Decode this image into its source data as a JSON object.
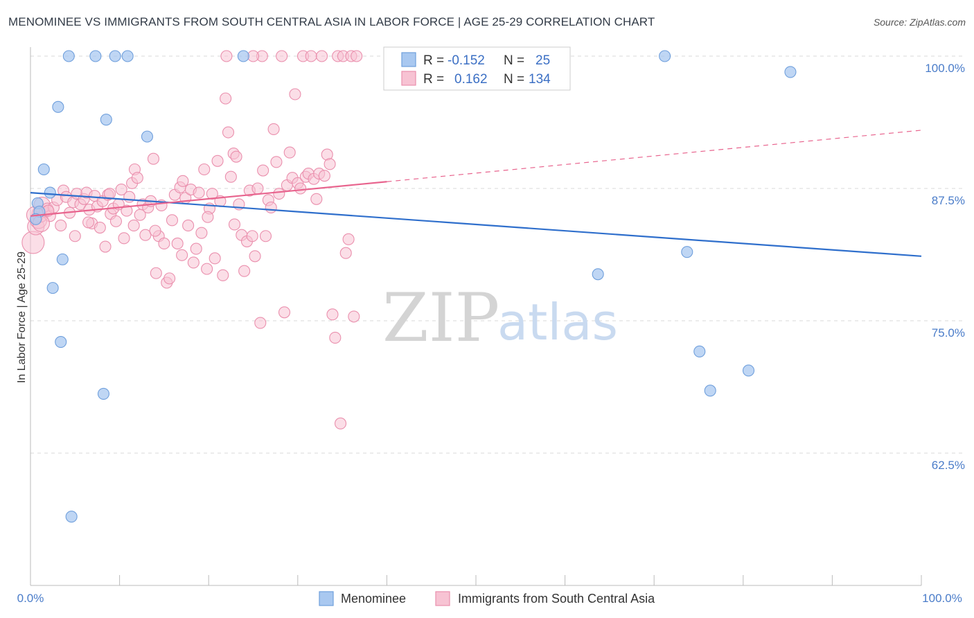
{
  "title": "MENOMINEE VS IMMIGRANTS FROM SOUTH CENTRAL ASIA IN LABOR FORCE | AGE 25-29 CORRELATION CHART",
  "source": "Source: ZipAtlas.com",
  "watermark": {
    "part1": "ZIP",
    "part2": "atlas"
  },
  "colors": {
    "blue_fill": "#a9c8f0",
    "blue_stroke": "#6f9fdc",
    "blue_line": "#2f6fcc",
    "pink_fill": "#f7c3d3",
    "pink_stroke": "#ea8fad",
    "pink_line": "#e8648e",
    "axis_text": "#4a7cc9",
    "grid": "#d8d8d8"
  },
  "legend_box": {
    "rows": [
      {
        "r_label": "R =",
        "r_value": "-0.152",
        "n_label": "N =",
        "n_value": "25"
      },
      {
        "r_label": "R =",
        "r_value": "0.162",
        "n_label": "N =",
        "n_value": "134"
      }
    ]
  },
  "chart_data": {
    "type": "scatter",
    "xlabel": "",
    "ylabel": "In Labor Force | Age 25-29",
    "xlim": [
      0,
      100
    ],
    "ylim": [
      50,
      102
    ],
    "x_tick_labels": [
      "0.0%",
      "100.0%"
    ],
    "y_ticks": [
      62.5,
      75.0,
      87.5,
      100.0
    ],
    "y_tick_labels": [
      "62.5%",
      "75.0%",
      "87.5%",
      "100.0%"
    ],
    "grid": "horizontal dashed",
    "legend_position": "bottom-center",
    "series": [
      {
        "name": "Menominee",
        "color": "blue",
        "trend": {
          "x0": 0,
          "y0": 87.1,
          "x1": 100,
          "y1": 81.1,
          "dashed_from": null
        },
        "points": [
          [
            0.8,
            86.1
          ],
          [
            1.0,
            85.3
          ],
          [
            0.6,
            84.6
          ],
          [
            1.5,
            89.3
          ],
          [
            2.2,
            87.1
          ],
          [
            3.1,
            95.2
          ],
          [
            2.5,
            78.1
          ],
          [
            3.6,
            80.8
          ],
          [
            3.4,
            73.0
          ],
          [
            4.3,
            100.0
          ],
          [
            7.3,
            100.0
          ],
          [
            9.5,
            100.0
          ],
          [
            10.9,
            100.0
          ],
          [
            8.5,
            94.0
          ],
          [
            13.1,
            92.4
          ],
          [
            8.2,
            68.1
          ],
          [
            4.6,
            56.5
          ],
          [
            23.9,
            100.0
          ],
          [
            71.2,
            100.0
          ],
          [
            85.3,
            98.5
          ],
          [
            73.7,
            81.5
          ],
          [
            63.7,
            79.4
          ],
          [
            75.1,
            72.1
          ],
          [
            76.3,
            68.4
          ],
          [
            80.6,
            70.3
          ]
        ]
      },
      {
        "name": "Immigrants from South Central Asia",
        "color": "pink",
        "trend": {
          "x0": 0,
          "y0": 84.9,
          "x1": 100,
          "y1": 93.0,
          "solid_until": 40
        },
        "points": [
          [
            0.3,
            82.4
          ],
          [
            0.6,
            83.9
          ],
          [
            0.9,
            84.5
          ],
          [
            1.1,
            85.1
          ],
          [
            1.3,
            85.9
          ],
          [
            1.6,
            85.3
          ],
          [
            1.9,
            85.6
          ],
          [
            2.2,
            84.9
          ],
          [
            2.6,
            85.7
          ],
          [
            3.0,
            86.4
          ],
          [
            3.4,
            84.0
          ],
          [
            3.7,
            87.3
          ],
          [
            4.0,
            86.7
          ],
          [
            4.4,
            85.2
          ],
          [
            4.8,
            86.2
          ],
          [
            5.2,
            87.0
          ],
          [
            5.6,
            86.0
          ],
          [
            6.0,
            86.5
          ],
          [
            6.3,
            87.1
          ],
          [
            6.6,
            85.5
          ],
          [
            6.9,
            84.2
          ],
          [
            7.2,
            86.8
          ],
          [
            7.5,
            85.8
          ],
          [
            7.8,
            83.8
          ],
          [
            8.1,
            86.3
          ],
          [
            8.4,
            82.0
          ],
          [
            8.7,
            86.9
          ],
          [
            9.0,
            85.1
          ],
          [
            9.3,
            85.6
          ],
          [
            9.6,
            84.4
          ],
          [
            9.9,
            86.0
          ],
          [
            10.2,
            87.4
          ],
          [
            10.5,
            82.8
          ],
          [
            10.8,
            85.4
          ],
          [
            11.1,
            86.7
          ],
          [
            11.4,
            88.0
          ],
          [
            11.7,
            89.3
          ],
          [
            12.0,
            88.5
          ],
          [
            12.3,
            85.0
          ],
          [
            12.6,
            86.0
          ],
          [
            12.9,
            83.1
          ],
          [
            13.2,
            85.7
          ],
          [
            13.5,
            86.3
          ],
          [
            13.8,
            90.3
          ],
          [
            14.1,
            79.5
          ],
          [
            14.4,
            83.0
          ],
          [
            14.7,
            85.9
          ],
          [
            15.0,
            82.3
          ],
          [
            15.3,
            78.6
          ],
          [
            15.6,
            79.0
          ],
          [
            15.9,
            84.5
          ],
          [
            16.2,
            86.9
          ],
          [
            16.5,
            82.3
          ],
          [
            16.8,
            87.6
          ],
          [
            17.1,
            88.2
          ],
          [
            17.4,
            86.6
          ],
          [
            17.7,
            84.0
          ],
          [
            18.0,
            87.4
          ],
          [
            18.3,
            80.5
          ],
          [
            18.6,
            81.8
          ],
          [
            18.9,
            87.1
          ],
          [
            19.2,
            83.3
          ],
          [
            19.5,
            89.3
          ],
          [
            19.8,
            79.9
          ],
          [
            20.1,
            85.6
          ],
          [
            20.4,
            87.0
          ],
          [
            20.7,
            80.9
          ],
          [
            21.0,
            90.1
          ],
          [
            21.3,
            86.3
          ],
          [
            21.6,
            79.3
          ],
          [
            21.9,
            96.0
          ],
          [
            22.2,
            92.8
          ],
          [
            22.5,
            88.6
          ],
          [
            22.8,
            90.8
          ],
          [
            23.1,
            90.5
          ],
          [
            23.4,
            86.0
          ],
          [
            23.7,
            83.1
          ],
          [
            24.0,
            79.7
          ],
          [
            24.3,
            82.5
          ],
          [
            24.6,
            87.3
          ],
          [
            24.9,
            83.0
          ],
          [
            25.2,
            81.1
          ],
          [
            25.5,
            87.5
          ],
          [
            25.8,
            74.8
          ],
          [
            26.1,
            89.2
          ],
          [
            26.4,
            83.0
          ],
          [
            26.7,
            86.4
          ],
          [
            27.0,
            85.7
          ],
          [
            27.3,
            93.1
          ],
          [
            27.6,
            90.0
          ],
          [
            27.9,
            87.0
          ],
          [
            28.2,
            100.0
          ],
          [
            28.5,
            75.8
          ],
          [
            28.8,
            87.8
          ],
          [
            29.1,
            90.9
          ],
          [
            29.4,
            88.5
          ],
          [
            29.7,
            96.4
          ],
          [
            30.0,
            88.0
          ],
          [
            30.3,
            87.5
          ],
          [
            30.6,
            100.0
          ],
          [
            30.9,
            88.6
          ],
          [
            31.2,
            88.9
          ],
          [
            31.5,
            100.0
          ],
          [
            31.8,
            88.4
          ],
          [
            32.1,
            86.5
          ],
          [
            32.4,
            88.9
          ],
          [
            32.7,
            100.0
          ],
          [
            33.0,
            88.7
          ],
          [
            33.3,
            90.7
          ],
          [
            33.6,
            89.8
          ],
          [
            33.9,
            75.6
          ],
          [
            34.2,
            73.4
          ],
          [
            34.5,
            100.0
          ],
          [
            34.8,
            65.3
          ],
          [
            35.1,
            100.0
          ],
          [
            35.4,
            81.4
          ],
          [
            35.7,
            82.7
          ],
          [
            36.0,
            100.0
          ],
          [
            36.3,
            75.4
          ],
          [
            36.6,
            100.0
          ],
          [
            26.0,
            100.0
          ],
          [
            25.0,
            100.0
          ],
          [
            22.0,
            100.0
          ],
          [
            0.5,
            85.0
          ],
          [
            1.2,
            84.2
          ],
          [
            2.0,
            85.4
          ],
          [
            5.0,
            83.0
          ],
          [
            6.5,
            84.3
          ],
          [
            8.9,
            87.0
          ],
          [
            11.6,
            84.0
          ],
          [
            14.0,
            83.5
          ],
          [
            17.0,
            81.2
          ],
          [
            19.9,
            84.8
          ],
          [
            22.9,
            84.1
          ]
        ]
      }
    ]
  }
}
